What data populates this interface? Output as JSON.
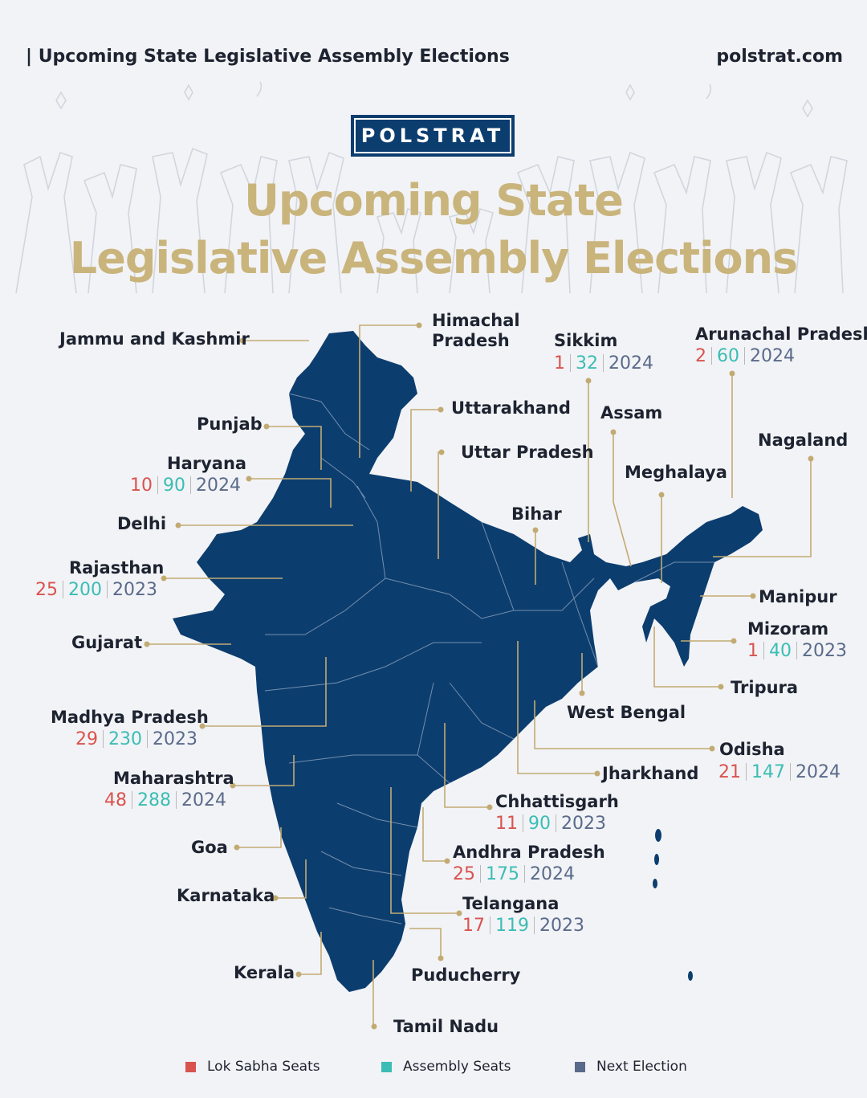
{
  "header": {
    "left_title": "| Upcoming State Legislative Assembly Elections",
    "site": "polstrat.com"
  },
  "logo_text": "POLSTRAT",
  "title": {
    "line1": "Upcoming State",
    "line2": "Legislative Assembly Elections"
  },
  "colors": {
    "map": "#0c3d6f",
    "leader": "#c2ab73",
    "title": "#c9b47c",
    "lok_sabha": "#d9534f",
    "assembly": "#3bbdb5",
    "next_election": "#5a6a8a"
  },
  "states": {
    "jk": {
      "name": "Jammu and Kashmir"
    },
    "hp": {
      "name": "Himachal\nPradesh"
    },
    "punjab": {
      "name": "Punjab"
    },
    "haryana": {
      "name": "Haryana",
      "ls": "10",
      "as": "90",
      "ne": "2024"
    },
    "delhi": {
      "name": "Delhi"
    },
    "rajasthan": {
      "name": "Rajasthan",
      "ls": "25",
      "as": "200",
      "ne": "2023"
    },
    "gujarat": {
      "name": "Gujarat"
    },
    "mp": {
      "name": "Madhya Pradesh",
      "ls": "29",
      "as": "230",
      "ne": "2023"
    },
    "maharashtra": {
      "name": "Maharashtra",
      "ls": "48",
      "as": "288",
      "ne": "2024"
    },
    "goa": {
      "name": "Goa"
    },
    "karnataka": {
      "name": "Karnataka"
    },
    "kerala": {
      "name": "Kerala"
    },
    "tn": {
      "name": "Tamil Nadu"
    },
    "puducherry": {
      "name": "Puducherry"
    },
    "telangana": {
      "name": "Telangana",
      "ls": "17",
      "as": "119",
      "ne": "2023"
    },
    "ap": {
      "name": "Andhra Pradesh",
      "ls": "25",
      "as": "175",
      "ne": "2024"
    },
    "chhattisgarh": {
      "name": "Chhattisgarh",
      "ls": "11",
      "as": "90",
      "ne": "2023"
    },
    "jharkhand": {
      "name": "Jharkhand"
    },
    "odisha": {
      "name": "Odisha",
      "ls": "21",
      "as": "147",
      "ne": "2024"
    },
    "wb": {
      "name": "West Bengal"
    },
    "tripura": {
      "name": "Tripura"
    },
    "mizoram": {
      "name": "Mizoram",
      "ls": "1",
      "as": "40",
      "ne": "2023"
    },
    "manipur": {
      "name": "Manipur"
    },
    "nagaland": {
      "name": "Nagaland"
    },
    "meghalaya": {
      "name": "Meghalaya"
    },
    "assam": {
      "name": "Assam"
    },
    "arunachal": {
      "name": "Arunachal Pradesh",
      "ls": "2",
      "as": "60",
      "ne": "2024"
    },
    "sikkim": {
      "name": "Sikkim",
      "ls": "1",
      "as": "32",
      "ne": "2024"
    },
    "bihar": {
      "name": "Bihar"
    },
    "up": {
      "name": "Uttar Pradesh"
    },
    "uttarakhand": {
      "name": "Uttarakhand"
    }
  },
  "legend": {
    "lok_sabha": "Lok Sabha Seats",
    "assembly": "Assembly Seats",
    "next_election": "Next Election"
  }
}
